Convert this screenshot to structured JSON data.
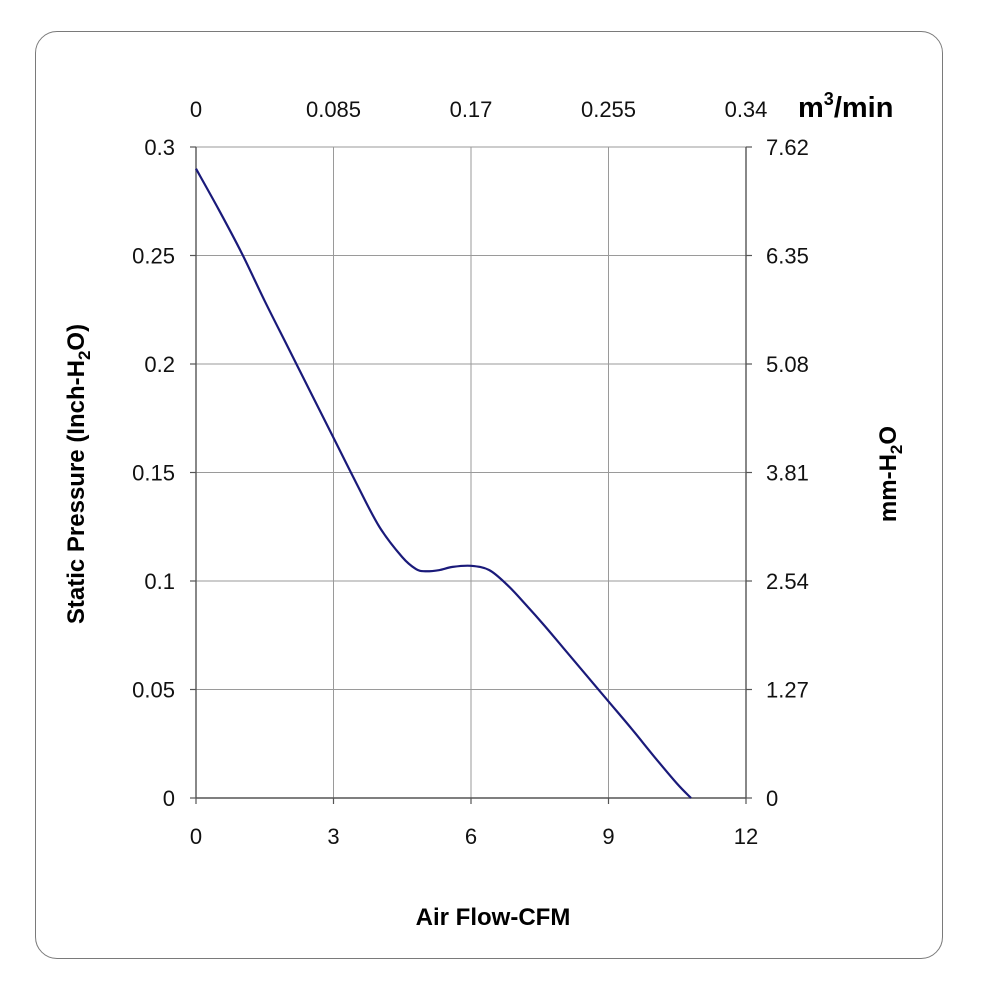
{
  "chart_data": {
    "type": "line",
    "xlabel": "Air Flow-CFM",
    "ylabel": {
      "main": "Static Pressure (Inch-H",
      "sub": "2",
      "tail": "O)"
    },
    "y2label": {
      "main": "mm-H",
      "sub": "2",
      "tail": "O"
    },
    "x2label": {
      "main": "m",
      "sup": "3",
      "tail": "/min"
    },
    "xlim": [
      0,
      12
    ],
    "ylim": [
      0,
      0.3
    ],
    "x_ticks": [
      "0",
      "3",
      "6",
      "9",
      "12"
    ],
    "y_ticks": [
      "0",
      "0.05",
      "0.1",
      "0.15",
      "0.2",
      "0.25",
      "0.3"
    ],
    "x2_ticks": [
      "0",
      "0.085",
      "0.17",
      "0.255",
      "0.34"
    ],
    "y2_ticks": [
      "0",
      "1.27",
      "2.54",
      "3.81",
      "5.08",
      "6.35",
      "7.62"
    ],
    "grid": true,
    "series": [
      {
        "color": "#1a1a7a",
        "x": [
          0,
          0.5,
          1,
          1.5,
          2,
          2.5,
          3,
          3.5,
          4,
          4.5,
          4.8,
          5,
          5.3,
          5.6,
          6,
          6.4,
          6.8,
          7.2,
          7.6,
          8,
          8.5,
          9,
          9.5,
          10,
          10.5,
          10.8
        ],
        "y": [
          0.29,
          0.271,
          0.251,
          0.229,
          0.208,
          0.187,
          0.166,
          0.145,
          0.125,
          0.111,
          0.1055,
          0.1045,
          0.105,
          0.1065,
          0.107,
          0.105,
          0.098,
          0.089,
          0.0795,
          0.0695,
          0.057,
          0.0445,
          0.032,
          0.019,
          0.0065,
          0
        ]
      }
    ]
  }
}
